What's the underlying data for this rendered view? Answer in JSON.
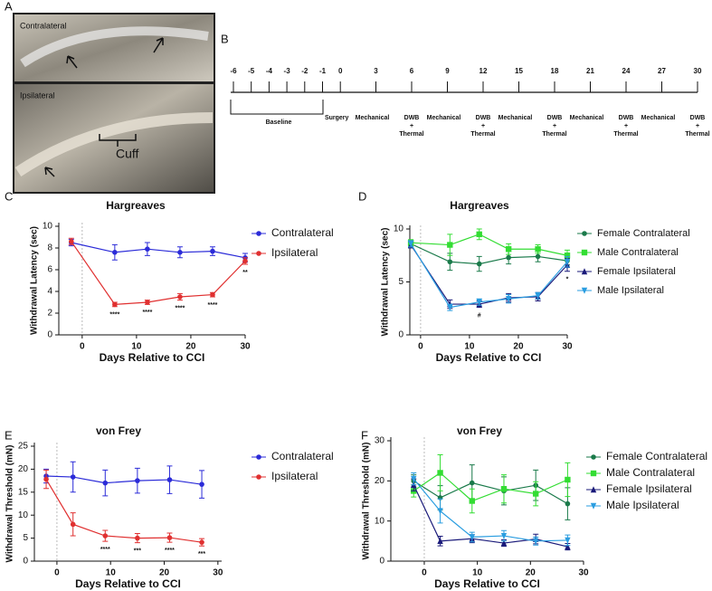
{
  "panel_labels": [
    "A",
    "B",
    "C",
    "D",
    "E",
    "F"
  ],
  "photos": {
    "top_label": "Contralateral",
    "bottom_label": "Ipsilateral",
    "cuff_label": "Cuff"
  },
  "timeline": {
    "days": [
      -6,
      -5,
      -4,
      -3,
      -2,
      -1,
      0,
      3,
      6,
      9,
      12,
      15,
      18,
      21,
      24,
      27,
      30
    ],
    "baseline_label": "Baseline",
    "events": [
      null,
      null,
      null,
      null,
      null,
      null,
      [
        "Surgery"
      ],
      [
        "Mechanical"
      ],
      [
        "DWB",
        "+",
        "Thermal"
      ],
      [
        "Mechanical"
      ],
      [
        "DWB",
        "+",
        "Thermal"
      ],
      [
        "Mechanical"
      ],
      [
        "DWB",
        "+",
        "Thermal"
      ],
      [
        "Mechanical"
      ],
      [
        "DWB",
        "+",
        "Thermal"
      ],
      [
        "Mechanical"
      ],
      [
        "DWB",
        "+",
        "Thermal"
      ]
    ]
  },
  "chart_data": [
    {
      "type": "line",
      "title": "Hargreaves",
      "x_label": "Days Relative to CCI",
      "y_label": "Withdrawal Latency (sec)",
      "x": [
        -2,
        6,
        12,
        18,
        24,
        30
      ],
      "xlim": [
        -4.3,
        30
      ],
      "xticks": [
        0,
        10,
        20,
        30
      ],
      "ylim": [
        0,
        10
      ],
      "yticks": [
        0,
        2,
        4,
        6,
        8,
        10
      ],
      "significance": [
        null,
        "****",
        "****",
        "****",
        "****",
        "**"
      ],
      "series": [
        {
          "name": "Contralateral",
          "color": "#2b2bd8",
          "marker": "circle",
          "values": [
            8.5,
            7.6,
            7.9,
            7.6,
            7.7,
            7.1
          ],
          "errors": [
            0.3,
            0.7,
            0.6,
            0.5,
            0.4,
            0.4
          ]
        },
        {
          "name": "Ipsilateral",
          "color": "#e03030",
          "marker": "circle",
          "values": [
            8.6,
            2.8,
            3.0,
            3.5,
            3.7,
            6.8
          ],
          "errors": [
            0.3,
            0.2,
            0.2,
            0.3,
            0.2,
            0.3
          ]
        }
      ]
    },
    {
      "type": "line",
      "title": "Hargreaves",
      "x_label": "Days Relative to CCI",
      "y_label": "Withdrawal Latency (sec)",
      "x": [
        -2,
        6,
        12,
        18,
        24,
        30
      ],
      "xlim": [
        -2.2,
        30
      ],
      "xticks": [
        0,
        10,
        20,
        30
      ],
      "ylim": [
        0,
        10
      ],
      "yticks": [
        0,
        5,
        10
      ],
      "significance": [
        null,
        null,
        "#",
        null,
        null,
        "*"
      ],
      "series": [
        {
          "name": "Female Contralateral",
          "color": "#1a7a4a",
          "marker": "circle",
          "values": [
            8.6,
            6.9,
            6.7,
            7.3,
            7.4,
            7.0
          ],
          "errors": [
            0.3,
            0.8,
            0.7,
            0.6,
            0.5,
            0.4
          ]
        },
        {
          "name": "Male Contralateral",
          "color": "#33dd33",
          "marker": "square",
          "values": [
            8.7,
            8.5,
            9.5,
            8.1,
            8.1,
            7.5
          ],
          "errors": [
            0.3,
            1.0,
            0.5,
            0.5,
            0.4,
            0.5
          ]
        },
        {
          "name": "Female Ipsilateral",
          "color": "#1a1a7a",
          "marker": "triangle",
          "values": [
            8.5,
            2.9,
            2.9,
            3.5,
            3.6,
            6.6
          ],
          "errors": [
            0.3,
            0.4,
            0.3,
            0.4,
            0.4,
            0.6
          ]
        },
        {
          "name": "Male Ipsilateral",
          "color": "#2a9de0",
          "marker": "triangle-down",
          "values": [
            8.6,
            2.6,
            3.1,
            3.4,
            3.7,
            6.9
          ],
          "errors": [
            0.3,
            0.3,
            0.3,
            0.4,
            0.3,
            0.5
          ]
        }
      ]
    },
    {
      "type": "line",
      "title": "von Frey",
      "x_label": "Days Relative to CCI",
      "y_label": "Withdrawal Threshold (mN)",
      "x": [
        -2,
        3,
        9,
        15,
        21,
        27
      ],
      "xlim": [
        -4.2,
        30.7
      ],
      "xticks": [
        0,
        10,
        20,
        30
      ],
      "ylim": [
        0,
        25
      ],
      "yticks": [
        0,
        5,
        10,
        15,
        20,
        25
      ],
      "significance": [
        null,
        null,
        "****",
        "***",
        "****",
        "***"
      ],
      "series": [
        {
          "name": "Contralateral",
          "color": "#2b2bd8",
          "marker": "circle",
          "values": [
            18.5,
            18.3,
            17.0,
            17.5,
            17.7,
            16.7
          ],
          "errors": [
            1.5,
            3.3,
            2.8,
            2.7,
            3.0,
            3.0
          ]
        },
        {
          "name": "Ipsilateral",
          "color": "#e03030",
          "marker": "circle",
          "values": [
            17.8,
            8.0,
            5.5,
            5.0,
            5.1,
            4.1
          ],
          "errors": [
            2.0,
            2.5,
            1.2,
            1.0,
            1.0,
            0.8
          ]
        }
      ]
    },
    {
      "type": "line",
      "title": "von Frey",
      "x_label": "Days Relative to CCI",
      "y_label": "Withdrawal Threshold (mN)",
      "x": [
        -2,
        3,
        9,
        15,
        21,
        27
      ],
      "xlim": [
        -6.3,
        30
      ],
      "xticks": [
        0,
        10,
        20,
        30
      ],
      "ylim": [
        0,
        30
      ],
      "yticks": [
        0,
        10,
        20,
        30
      ],
      "significance": [
        null,
        null,
        null,
        null,
        null,
        null
      ],
      "series": [
        {
          "name": "Female Contralateral",
          "color": "#1a7a4a",
          "marker": "circle",
          "values": [
            20,
            15.8,
            19.5,
            17.5,
            18.9,
            14.3
          ],
          "errors": [
            1.5,
            3.0,
            4.5,
            3.5,
            3.8,
            4.0
          ]
        },
        {
          "name": "Male Contralateral",
          "color": "#33dd33",
          "marker": "square",
          "values": [
            17.5,
            22,
            15,
            18,
            16.8,
            20.3
          ],
          "errors": [
            1.5,
            4.5,
            3.0,
            3.5,
            3.0,
            4.2
          ]
        },
        {
          "name": "Female Ipsilateral",
          "color": "#1a1a7a",
          "marker": "triangle",
          "values": [
            19,
            5,
            5.6,
            4.5,
            5.5,
            3.6
          ],
          "errors": [
            1.5,
            1.2,
            1.0,
            0.8,
            1.2,
            0.8
          ]
        },
        {
          "name": "Male Ipsilateral",
          "color": "#2a9de0",
          "marker": "triangle-down",
          "values": [
            20.5,
            12.5,
            6,
            6.3,
            5,
            5.2
          ],
          "errors": [
            1.5,
            3.0,
            1.2,
            1.3,
            1.0,
            1.3
          ]
        }
      ]
    }
  ]
}
